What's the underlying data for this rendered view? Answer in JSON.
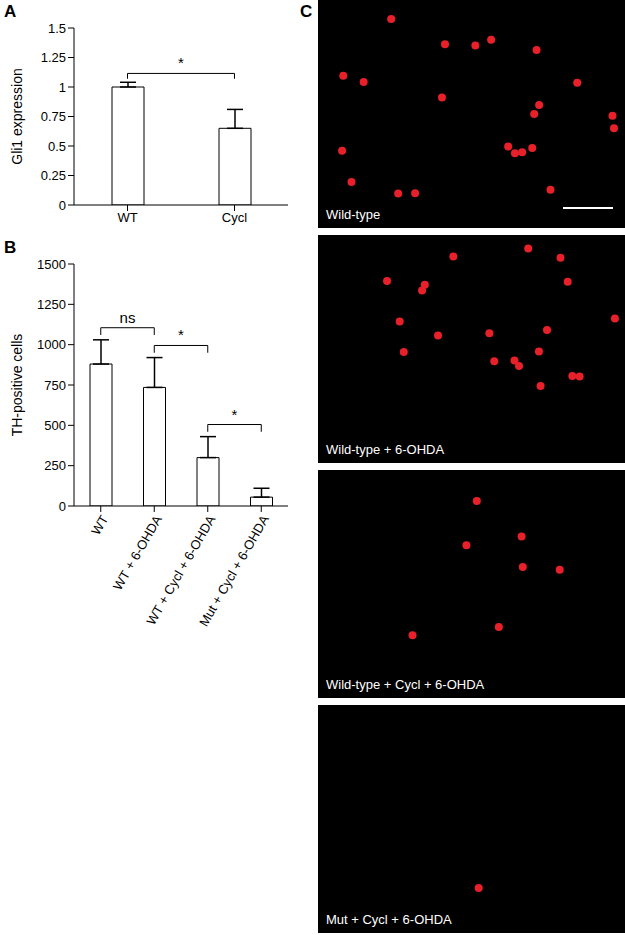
{
  "chart_data": [
    {
      "panel": "A",
      "type": "bar",
      "y_label": "Gli1 expression",
      "categories": [
        "WT",
        "Cycl"
      ],
      "values": [
        1.0,
        0.65
      ],
      "errors": [
        0.04,
        0.16
      ],
      "color": "#ffffff",
      "ylim": [
        0,
        1.5
      ],
      "yticks": [
        0,
        0.25,
        0.5,
        0.75,
        1,
        1.25,
        1.5
      ],
      "annotations": [
        {
          "from": 0,
          "to": 1,
          "text": "*"
        }
      ]
    },
    {
      "panel": "B",
      "type": "bar",
      "y_label": "TH-positive cells",
      "categories": [
        "WT",
        "WT + 6-OHDA",
        "WT + Cycl + 6-OHDA",
        "Mut + Cycl + 6-OHDA"
      ],
      "values": [
        880,
        735,
        300,
        55
      ],
      "errors": [
        150,
        185,
        130,
        55
      ],
      "color": "#ffffff",
      "ylim": [
        0,
        1500
      ],
      "yticks": [
        0,
        250,
        500,
        750,
        1000,
        1250,
        1500
      ],
      "annotations": [
        {
          "from": 0,
          "to": 1,
          "text": "ns"
        },
        {
          "from": 1,
          "to": 2,
          "text": "*"
        },
        {
          "from": 2,
          "to": 3,
          "text": "*"
        }
      ]
    }
  ],
  "image_panel": {
    "panel": "C",
    "images": [
      "Wild-type",
      "Wild-type + 6-OHDA",
      "Wild-type + Cycl + 6-OHDA",
      "Mut + Cycl + 6-OHDA"
    ]
  }
}
